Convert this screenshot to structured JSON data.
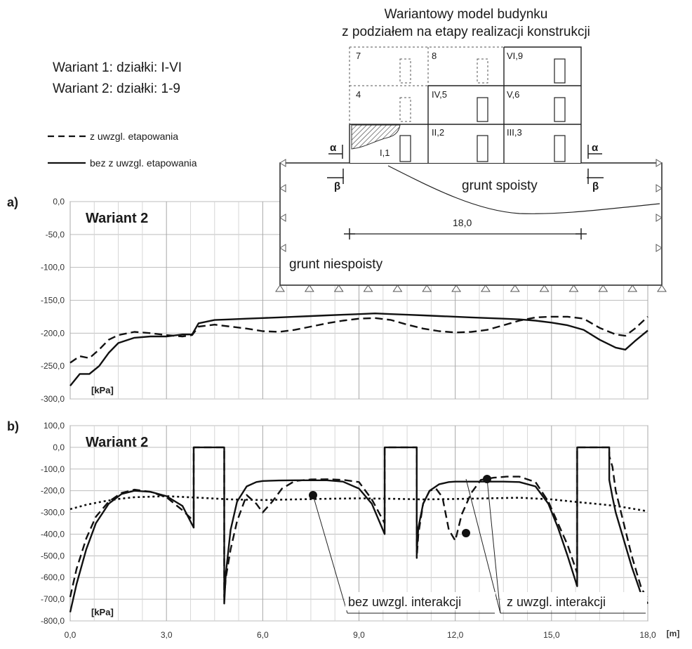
{
  "figure": {
    "title_line1": "Wariantowy model budynku",
    "title_line2": "z podziałem na etapy realizacji konstrukcji",
    "variant1_text": "Wariant 1: działki: I-VI",
    "variant2_text": "Wariant 2: działki: 1-9",
    "legend": {
      "dashed": "z uwzgl. etapowania",
      "solid": "bez z uwzgl. etapowania"
    },
    "panel_a_letter": "a)",
    "panel_b_letter": "b)"
  },
  "diagram": {
    "cells": [
      "7",
      "8",
      "VI,9",
      "4",
      "IV,5",
      "V,6",
      "I,1",
      "II,2",
      "III,3"
    ],
    "ground_cohesive": "grunt spoisty",
    "ground_noncohesive": "grunt niespoisty",
    "dimension": "18,0",
    "alpha": "α",
    "beta": "β"
  },
  "chart_data": [
    {
      "type": "line",
      "panel_label": "Wariant 2",
      "unit_label": "[kPa]",
      "xlim": [
        0,
        18
      ],
      "ylim": [
        -300,
        0
      ],
      "y_ticks": [
        "0,0",
        "-50,0",
        "-100,0",
        "-150,0",
        "-200,0",
        "-250,0",
        "-300,0"
      ],
      "grid": true,
      "series": [
        {
          "name": "z uwzgl. etapowania",
          "style": "dashed",
          "x": [
            0,
            0.3,
            0.6,
            0.9,
            1.2,
            1.5,
            2.0,
            2.5,
            3.0,
            3.5,
            3.8,
            4.0,
            4.5,
            5.0,
            5.5,
            6.0,
            6.5,
            7.0,
            7.5,
            8.0,
            8.5,
            9.0,
            9.5,
            10.0,
            10.5,
            11.0,
            11.5,
            12.0,
            12.5,
            13.0,
            13.5,
            14.0,
            14.5,
            15.0,
            15.5,
            16.0,
            16.5,
            17.0,
            17.3,
            17.6,
            18.0
          ],
          "y": [
            -245,
            -235,
            -238,
            -225,
            -210,
            -203,
            -198,
            -200,
            -203,
            -205,
            -203,
            -190,
            -187,
            -190,
            -193,
            -197,
            -198,
            -195,
            -190,
            -185,
            -181,
            -178,
            -177,
            -180,
            -187,
            -193,
            -197,
            -199,
            -198,
            -195,
            -188,
            -181,
            -176,
            -175,
            -175,
            -178,
            -192,
            -202,
            -204,
            -193,
            -175
          ]
        },
        {
          "name": "bez z uwzgl. etapowania",
          "style": "solid",
          "x": [
            0,
            0.3,
            0.6,
            0.9,
            1.2,
            1.5,
            2.0,
            2.5,
            3.0,
            3.5,
            3.8,
            4.0,
            4.5,
            5.0,
            5.5,
            6.0,
            6.5,
            7.0,
            7.5,
            8.0,
            8.5,
            9.0,
            9.5,
            10.0,
            10.5,
            11.0,
            11.5,
            12.0,
            12.5,
            13.0,
            13.5,
            14.0,
            14.5,
            15.0,
            15.5,
            16.0,
            16.5,
            17.0,
            17.3,
            17.6,
            18.0
          ],
          "y": [
            -280,
            -262,
            -262,
            -250,
            -230,
            -215,
            -207,
            -205,
            -205,
            -202,
            -202,
            -185,
            -180,
            -179,
            -178,
            -177,
            -176,
            -175,
            -174,
            -173,
            -172,
            -171,
            -170,
            -171,
            -172,
            -173,
            -174,
            -175,
            -176,
            -177,
            -178,
            -179,
            -181,
            -184,
            -188,
            -195,
            -210,
            -222,
            -225,
            -212,
            -196
          ]
        }
      ]
    },
    {
      "type": "line",
      "panel_label": "Wariant 2",
      "unit_label": "[kPa]",
      "xlabel": "[m]",
      "xlim": [
        0,
        18
      ],
      "ylim": [
        -800,
        100
      ],
      "x_ticks": [
        "0,0",
        "3,0",
        "6,0",
        "9,0",
        "12,0",
        "15,0",
        "18,0"
      ],
      "y_ticks": [
        "100,0",
        "0,0",
        "-100,0",
        "-200,0",
        "-300,0",
        "-400,0",
        "-500,0",
        "-600,0",
        "-700,0",
        "-800,0"
      ],
      "grid": true,
      "annotations": [
        "bez uwzgl. interakcji",
        "z uwzgl. interakcji"
      ],
      "series": [
        {
          "name": "z uwzgl. etapowania",
          "style": "dashed",
          "x": [
            0,
            0.2,
            0.5,
            0.8,
            1.2,
            1.6,
            2.0,
            2.5,
            3.0,
            3.5,
            3.85,
            3.85,
            4.8,
            4.8,
            4.85,
            5.0,
            5.2,
            5.5,
            5.8,
            6.0,
            6.3,
            6.6,
            7.0,
            7.5,
            8.0,
            8.5,
            9.0,
            9.4,
            9.8,
            9.8,
            10.8,
            10.8,
            10.85,
            11.0,
            11.2,
            11.4,
            11.6,
            11.8,
            12.0,
            12.2,
            12.5,
            12.8,
            13.2,
            13.6,
            14.0,
            14.5,
            14.9,
            15.2,
            15.5,
            15.8,
            15.8,
            16.8,
            16.8,
            16.9,
            17.0,
            17.2,
            17.5,
            17.8,
            18.0
          ],
          "y": [
            -690,
            -560,
            -420,
            -320,
            -250,
            -210,
            -195,
            -205,
            -230,
            -290,
            -340,
            0,
            0,
            -690,
            -600,
            -470,
            -340,
            -220,
            -260,
            -300,
            -250,
            -190,
            -155,
            -148,
            -147,
            -150,
            -160,
            -240,
            -350,
            0,
            0,
            -510,
            -400,
            -260,
            -200,
            -190,
            -230,
            -380,
            -430,
            -310,
            -210,
            -150,
            -140,
            -135,
            -135,
            -160,
            -250,
            -350,
            -450,
            -580,
            0,
            0,
            -40,
            -90,
            -200,
            -320,
            -500,
            -650,
            -700
          ]
        },
        {
          "name": "bez z uwzgl. etapowania",
          "style": "solid",
          "x": [
            0,
            0.2,
            0.5,
            0.8,
            1.2,
            1.6,
            2.0,
            2.5,
            3.0,
            3.5,
            3.85,
            3.85,
            4.8,
            4.8,
            4.85,
            5.0,
            5.2,
            5.5,
            5.8,
            6.0,
            6.5,
            7.0,
            7.5,
            8.0,
            8.5,
            9.0,
            9.4,
            9.8,
            9.8,
            10.8,
            10.8,
            10.85,
            11.0,
            11.2,
            11.5,
            11.8,
            12.0,
            12.5,
            13.0,
            13.5,
            14.0,
            14.5,
            14.9,
            15.2,
            15.5,
            15.8,
            15.8,
            16.8,
            16.8,
            16.9,
            17.0,
            17.2,
            17.5,
            17.8,
            18.0
          ],
          "y": [
            -760,
            -630,
            -470,
            -350,
            -260,
            -215,
            -200,
            -205,
            -225,
            -270,
            -370,
            0,
            0,
            -720,
            -580,
            -380,
            -250,
            -180,
            -160,
            -155,
            -153,
            -152,
            -152,
            -152,
            -158,
            -190,
            -260,
            -400,
            0,
            0,
            -480,
            -370,
            -260,
            -200,
            -170,
            -160,
            -158,
            -158,
            -158,
            -158,
            -160,
            -180,
            -260,
            -370,
            -500,
            -640,
            0,
            0,
            -150,
            -230,
            -300,
            -400,
            -550,
            -680,
            -720
          ]
        },
        {
          "name": "bez uwzgl. interakcji",
          "style": "dotted",
          "x": [
            0,
            0.5,
            1.0,
            1.5,
            2.0,
            3.0,
            4.0,
            5.0,
            6.0,
            7.0,
            8.0,
            9.0,
            10.0,
            11.0,
            12.0,
            13.0,
            14.0,
            15.0,
            16.0,
            16.5,
            17.0,
            17.5,
            18.0
          ],
          "y": [
            -285,
            -265,
            -250,
            -238,
            -230,
            -225,
            -232,
            -240,
            -243,
            -240,
            -237,
            -235,
            -237,
            -240,
            -238,
            -235,
            -232,
            -240,
            -255,
            -262,
            -270,
            -282,
            -295
          ]
        }
      ]
    }
  ]
}
